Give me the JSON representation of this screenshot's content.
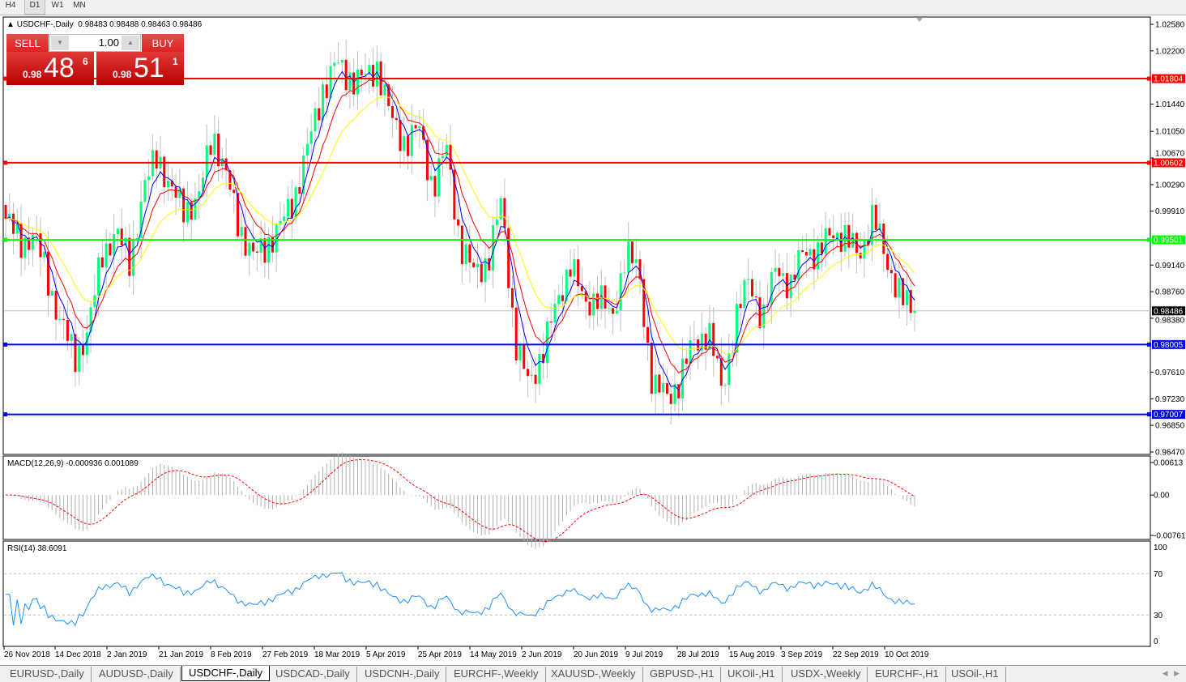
{
  "timeframes": [
    "H4",
    "D1",
    "W1",
    "MN"
  ],
  "active_timeframe": "D1",
  "chart": {
    "title": "USDCHF-,Daily",
    "ohlc": "0.98483 0.98488 0.98463 0.98486",
    "sell_label": "SELL",
    "buy_label": "BUY",
    "lot": "1.00",
    "sell_price": {
      "small": "0.98",
      "big": "48",
      "pip": "6"
    },
    "buy_price": {
      "small": "0.98",
      "big": "51",
      "pip": "1"
    },
    "macd_label": "MACD(12,26,9) -0.000936 0.001089",
    "rsi_label": "RSI(14) 38.6091"
  },
  "chart_data": {
    "type": "candlestick",
    "price_ticks": [
      "1.02580",
      "1.02200",
      "1.01440",
      "1.01050",
      "1.00670",
      "1.00290",
      "0.99910",
      "0.99140",
      "0.98760",
      "0.98380",
      "0.97610",
      "0.97230",
      "0.96850",
      "0.96470"
    ],
    "ylim": [
      0.9647,
      1.0258
    ],
    "current_price": "0.98486",
    "levels": [
      {
        "price": "1.01804",
        "color": "#ff0000"
      },
      {
        "price": "1.00602",
        "color": "#ff0000"
      },
      {
        "price": "0.99501",
        "color": "#00ff00"
      },
      {
        "price": "0.98005",
        "color": "#0000ff"
      },
      {
        "price": "0.97007",
        "color": "#0000ff"
      }
    ],
    "date_ticks": [
      "26 Nov 2018",
      "14 Dec 2018",
      "2 Jan 2019",
      "21 Jan 2019",
      "8 Feb 2019",
      "27 Feb 2019",
      "18 Mar 2019",
      "5 Apr 2019",
      "25 Apr 2019",
      "14 May 2019",
      "2 Jun 2019",
      "20 Jun 2019",
      "9 Jul 2019",
      "28 Jul 2019",
      "15 Aug 2019",
      "3 Sep 2019",
      "22 Sep 2019",
      "10 Oct 2019"
    ],
    "close_path": [
      0.998,
      0.9946,
      0.9957,
      0.99,
      0.983,
      0.9783,
      0.9818,
      0.9934,
      0.9957,
      0.9922,
      1.0015,
      1.0079,
      1.0015,
      0.9998,
      1.0003,
      1.0108,
      1.0039,
      0.9969,
      0.9922,
      0.9946,
      0.9969,
      1.0015,
      1.0085,
      1.0165,
      1.02,
      1.0183,
      1.0177,
      1.02,
      1.0119,
      1.009,
      1.0108,
      1.0027,
      1.0079,
      0.9946,
      0.99,
      0.9922,
      1.0003,
      0.9807,
      0.9738,
      0.9796,
      0.9853,
      0.9922,
      0.9853,
      0.9876,
      0.983,
      0.9934,
      0.99,
      0.9738,
      0.9727,
      0.975,
      0.9807,
      0.9818,
      0.9738,
      0.983,
      0.99,
      0.983,
      0.9922,
      0.9876,
      0.9946,
      0.9922,
      0.9969,
      0.9946,
      0.9934,
      0.998,
      0.9922,
      0.9864,
      0.98486
    ],
    "bull_color": "#00ff7f",
    "bear_color": "#ff0000",
    "ma_colors": [
      "#0000ff",
      "#ff0000",
      "#ffff00"
    ],
    "macd_ticks": [
      "0.00613",
      "0.00",
      "-0.007612"
    ],
    "macd_ylim": [
      -0.007612,
      0.00613
    ],
    "rsi_ticks": [
      "100",
      "70",
      "30",
      "0"
    ],
    "rsi_color": "#1e90ff"
  },
  "tabs": [
    "EURUSD-,Daily",
    "AUDUSD-,Daily",
    "USDCHF-,Daily",
    "USDCAD-,Daily",
    "USDCNH-,Daily",
    "EURCHF-,Weekly",
    "XAUUSD-,Weekly",
    "GBPUSD-,H1",
    "UKOil-,H1",
    "USDX-,Weekly",
    "EURCHF-,H1",
    "USOil-,H1"
  ],
  "active_tab": "USDCHF-,Daily"
}
